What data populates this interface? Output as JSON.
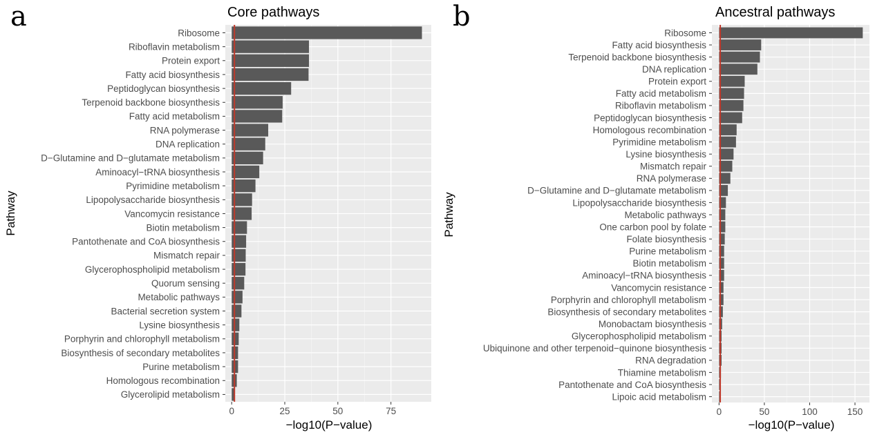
{
  "chart_data": [
    {
      "type": "bar",
      "orientation": "horizontal",
      "panel_label": "a",
      "title": "Core pathways",
      "xlabel": "−log10(P−value)",
      "ylabel": "Pathway",
      "xlim": [
        -3,
        94
      ],
      "xticks": [
        0,
        25,
        50,
        75
      ],
      "grid": true,
      "reference_line": {
        "x": 1.3,
        "color": "#c0392b"
      },
      "bar_color": "#595959",
      "panel_background": "#ebebeb",
      "categories": [
        "Ribosome",
        "Riboflavin metabolism",
        "Protein export",
        "Fatty acid biosynthesis",
        "Peptidoglycan biosynthesis",
        "Terpenoid backbone biosynthesis",
        "Fatty acid metabolism",
        "RNA polymerase",
        "DNA replication",
        "D−Glutamine and D−glutamate metabolism",
        "Aminoacyl−tRNA biosynthesis",
        "Pyrimidine metabolism",
        "Lipopolysaccharide biosynthesis",
        "Vancomycin resistance",
        "Biotin metabolism",
        "Pantothenate and CoA biosynthesis",
        "Mismatch repair",
        "Glycerophospholipid metabolism",
        "Quorum sensing",
        "Metabolic pathways",
        "Bacterial secretion system",
        "Lysine biosynthesis",
        "Porphyrin and chlorophyll metabolism",
        "Biosynthesis of secondary metabolites",
        "Purine metabolism",
        "Homologous recombination",
        "Glycerolipid metabolism"
      ],
      "values": [
        89.6,
        36.4,
        36.4,
        36.2,
        28.0,
        24.0,
        23.8,
        17.2,
        15.8,
        14.8,
        13.0,
        11.2,
        9.6,
        9.4,
        7.2,
        6.8,
        6.6,
        6.5,
        5.9,
        5.1,
        4.6,
        3.6,
        3.3,
        3.0,
        3.0,
        2.4,
        1.5
      ]
    },
    {
      "type": "bar",
      "orientation": "horizontal",
      "panel_label": "b",
      "title": "Ancestral pathways",
      "xlabel": "−log10(P−value)",
      "ylabel": "Pathway",
      "xlim": [
        -7.9,
        166
      ],
      "xticks": [
        0,
        50,
        100,
        150
      ],
      "grid": true,
      "reference_line": {
        "x": 1.3,
        "color": "#c0392b"
      },
      "bar_color": "#595959",
      "panel_background": "#ebebeb",
      "categories": [
        "Ribosome",
        "Fatty acid biosynthesis",
        "Terpenoid backbone biosynthesis",
        "DNA replication",
        "Protein export",
        "Fatty acid metabolism",
        "Riboflavin metabolism",
        "Peptidoglycan biosynthesis",
        "Homologous recombination",
        "Pyrimidine metabolism",
        "Lysine biosynthesis",
        "Mismatch repair",
        "RNA polymerase",
        "D−Glutamine and D−glutamate metabolism",
        "Lipopolysaccharide biosynthesis",
        "Metabolic pathways",
        "One carbon pool by folate",
        "Folate biosynthesis",
        "Purine metabolism",
        "Biotin metabolism",
        "Aminoacyl−tRNA biosynthesis",
        "Vancomycin resistance",
        "Porphyrin and chlorophyll metabolism",
        "Biosynthesis of secondary metabolites",
        "Monobactam biosynthesis",
        "Glycerophospholipid metabolism",
        "Ubiquinone and other terpenoid−quinone biosynthesis",
        "RNA degradation",
        "Thiamine metabolism",
        "Pantothenate and CoA biosynthesis",
        "Lipoic acid metabolism"
      ],
      "values": [
        158.6,
        46.5,
        45.1,
        42.3,
        28.3,
        27.6,
        26.9,
        25.5,
        19.4,
        18.7,
        16.0,
        14.6,
        12.5,
        9.7,
        7.6,
        6.9,
        6.9,
        6.3,
        5.6,
        5.6,
        5.6,
        4.9,
        4.9,
        4.2,
        3.4,
        2.8,
        2.8,
        2.8,
        2.1,
        1.4,
        1.4
      ]
    }
  ]
}
